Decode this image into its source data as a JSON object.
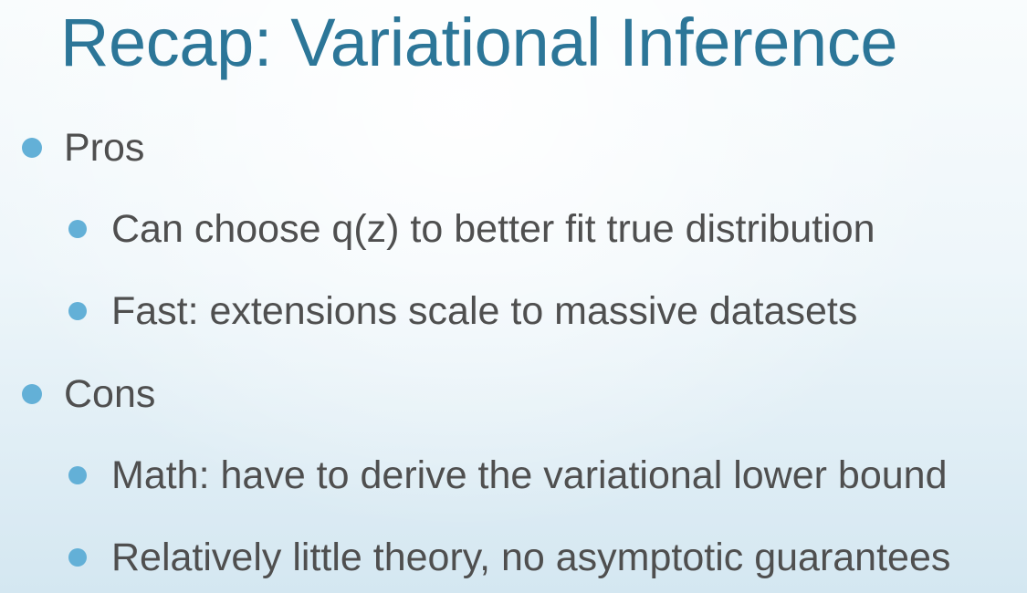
{
  "slide": {
    "title": "Recap: Variational Inference",
    "pros_label": "Pros",
    "pros_items": [
      "Can choose q(z) to better fit true distribution",
      "Fast: extensions scale to massive datasets"
    ],
    "cons_label": "Cons",
    "cons_items": [
      "Math: have to derive the variational lower bound",
      "Relatively little theory, no asymptotic guarantees"
    ],
    "colors": {
      "title": "#2c7698",
      "body_text": "#4f4f4f",
      "bullet": "#63b0d7",
      "background_top": "#f9fcfd",
      "background_bottom": "#d4e7f1"
    }
  }
}
